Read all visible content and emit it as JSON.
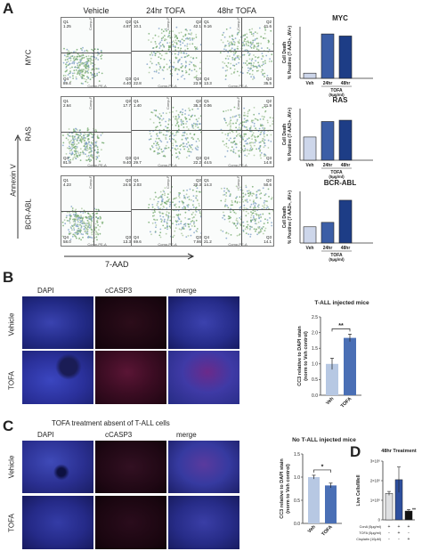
{
  "panel_labels": [
    "A",
    "B",
    "C",
    "D"
  ],
  "panelA": {
    "columns": [
      "Vehicle",
      "24hr TOFA",
      "48hr TOFA"
    ],
    "rows": [
      {
        "name": "MYC",
        "quadrants": [
          {
            "q1": "1.25",
            "q2": "4.87",
            "q3": "4.40",
            "q4": "89.4"
          },
          {
            "q1": "10.1",
            "q2": "42.1",
            "q3": "23.9",
            "q4": "22.8"
          },
          {
            "q1": "9.16",
            "q2": "41.6",
            "q3": "35.5",
            "q4": "13.3"
          }
        ]
      },
      {
        "name": "RAS",
        "quadrants": [
          {
            "q1": "2.64",
            "q2": "17.7",
            "q3": "9.40",
            "q4": "81.9"
          },
          {
            "q1": "1.40",
            "q2": "35.3",
            "q3": "22.2",
            "q4": "29.7"
          },
          {
            "q1": "0.06",
            "q2": "21.9",
            "q3": "14.8",
            "q4": "44.5"
          }
        ]
      },
      {
        "name": "BCR-ABL",
        "quadrants": [
          {
            "q1": "4.23",
            "q2": "24.5",
            "q3": "13.3",
            "q4": "58.0"
          },
          {
            "q1": "2.03",
            "q2": "20.3",
            "q3": "7.86",
            "q4": "69.6"
          },
          {
            "q1": "14.3",
            "q2": "50.6",
            "q3": "14.1",
            "q4": "21.2"
          }
        ]
      }
    ],
    "q_names": [
      "Q1",
      "Q2",
      "Q3",
      "Q4"
    ],
    "flow_axis_x": "Comp-PE-A",
    "flow_axis_y": "Comp-PE-Cy5-A",
    "annexin_label": "Annexin V",
    "aad_label": "7-AAD",
    "bar_ylabel": "Cell Death\n% Positive (7-AAD+, AV+)",
    "bar_ticks": [
      "Veh",
      "24hr",
      "48hr"
    ],
    "tofa_label": "TOFA",
    "tofa_dose": "(5µg/ml)"
  },
  "panelB": {
    "col_labels": [
      "DAPI",
      "cCASP3",
      "merge"
    ],
    "row_labels": [
      "Vehicle",
      "TOFA"
    ],
    "chart_title": "T-ALL injected mice",
    "ylabel": "CC3 relative to DAPI stain\n(norm to Veh control)",
    "significance": "**"
  },
  "panelC": {
    "header": "TOFA treatment absent of T-ALL cells",
    "col_labels": [
      "DAPI",
      "cCASP3",
      "merge"
    ],
    "row_labels": [
      "Vehicle",
      "TOFA"
    ],
    "chart_title": "No T-ALL injected mice",
    "ylabel": "CC3 relative to DAPI stain\n(norm to Veh control)",
    "significance": "*"
  },
  "panelD": {
    "title": "48hr Treatment",
    "ylabel": "Live Cells/Well",
    "significance": "**",
    "conditions": [
      {
        "label": "ConA (5µg/ml)",
        "signs": [
          "+",
          "+",
          "+"
        ]
      },
      {
        "label": "TOFA (5µg/ml)",
        "signs": [
          "-",
          "+",
          "-"
        ]
      },
      {
        "label": "Cisplatin (10µM)",
        "signs": [
          "-",
          "-",
          "+"
        ]
      }
    ]
  },
  "chart_data": [
    {
      "type": "bar",
      "name": "MYC",
      "categories": [
        "Veh",
        "24hr",
        "48hr"
      ],
      "values": [
        5,
        43,
        41
      ],
      "title": "MYC",
      "ylim": [
        0,
        50
      ]
    },
    {
      "type": "bar",
      "name": "RAS",
      "categories": [
        "Veh",
        "24hr",
        "48hr"
      ],
      "values": [
        18,
        30,
        31
      ],
      "title": "RAS",
      "ylim": [
        0,
        40
      ]
    },
    {
      "type": "bar",
      "name": "BCR-ABL",
      "categories": [
        "Veh",
        "24hr",
        "48hr"
      ],
      "values": [
        22,
        28,
        58
      ],
      "title": "BCR-ABL",
      "ylim": [
        0,
        70
      ]
    },
    {
      "type": "bar",
      "name": "T-ALL injected mice",
      "categories": [
        "Veh",
        "TOFA"
      ],
      "values": [
        1.0,
        1.83
      ],
      "errors": [
        0.18,
        0.12
      ],
      "ylim": [
        0,
        2.5
      ],
      "yticks": [
        0.0,
        0.5,
        1.0,
        1.5,
        2.0,
        2.5
      ]
    },
    {
      "type": "bar",
      "name": "No T-ALL injected mice",
      "categories": [
        "Veh",
        "TOFA"
      ],
      "values": [
        1.0,
        0.82
      ],
      "errors": [
        0.04,
        0.05
      ],
      "ylim": [
        0,
        1.5
      ],
      "yticks": [
        0.0,
        0.5,
        1.0,
        1.5
      ]
    },
    {
      "type": "bar",
      "name": "48hr Treatment",
      "categories": [
        "ConA",
        "ConA+TOFA",
        "ConA+Cisplatin"
      ],
      "values": [
        1350000,
        2050000,
        450000
      ],
      "errors": [
        100000,
        650000,
        80000
      ],
      "ylim": [
        0,
        3000000
      ],
      "yticks": [
        "0",
        "1×10⁶",
        "2×10⁶",
        "3×10⁶"
      ]
    }
  ],
  "colors": {
    "veh": "#cdd6ea",
    "tofa24": "#3c5ea6",
    "tofa48": "#1d3d86",
    "b_veh": "#b7c8e3",
    "b_tofa": "#4a6fb5",
    "d_cona": "#dfe0e2",
    "d_tofa": "#2e4f9e",
    "d_cis": "#111111"
  }
}
